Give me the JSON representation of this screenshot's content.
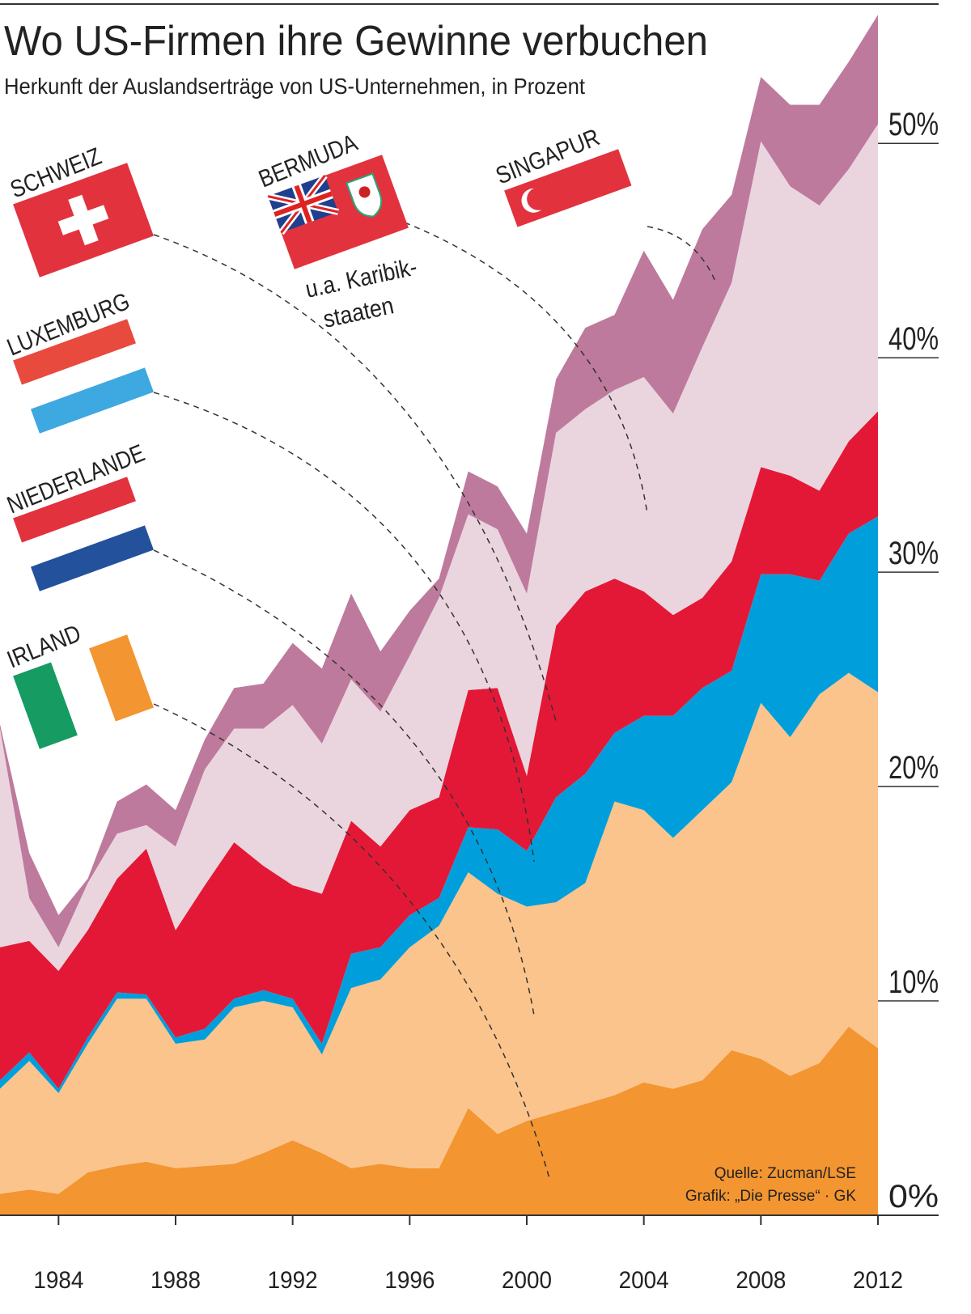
{
  "chart_data": {
    "type": "area",
    "stacked": true,
    "title": "Wo US-Firmen ihre Gewinne verbuchen",
    "subtitle": "Herkunft der Auslandserträge von US-Unternehmen, in Prozent",
    "x": [
      1982,
      1983,
      1984,
      1985,
      1986,
      1987,
      1988,
      1989,
      1990,
      1991,
      1992,
      1993,
      1994,
      1995,
      1996,
      1997,
      1998,
      1999,
      2000,
      2001,
      2002,
      2003,
      2004,
      2005,
      2006,
      2007,
      2008,
      2009,
      2010,
      2011,
      2012
    ],
    "xlim": [
      1982,
      2012
    ],
    "xticks": [
      1984,
      1988,
      1992,
      1996,
      2000,
      2004,
      2008,
      2012
    ],
    "ylim": [
      0,
      56.5
    ],
    "yticks": [
      {
        "value": 0,
        "label": "0%"
      },
      {
        "value": 10,
        "label": "10%"
      },
      {
        "value": 20,
        "label": "20%"
      },
      {
        "value": 30,
        "label": "30%"
      },
      {
        "value": 40,
        "label": "40%"
      },
      {
        "value": 50,
        "label": "50%"
      }
    ],
    "series": [
      {
        "name": "IRLAND",
        "color": "#f39530",
        "values": [
          1.0,
          1.2,
          1.0,
          2.0,
          2.3,
          2.5,
          2.2,
          2.3,
          2.4,
          2.9,
          3.5,
          2.9,
          2.2,
          2.4,
          2.2,
          2.2,
          5.0,
          3.8,
          4.4,
          4.8,
          5.2,
          5.6,
          6.2,
          5.9,
          6.3,
          7.7,
          7.3,
          6.5,
          7.1,
          8.8,
          7.8
        ]
      },
      {
        "name": "NIEDERLANDE",
        "color": "#fbc48c",
        "values": [
          4.9,
          6.0,
          4.7,
          6.0,
          7.8,
          7.6,
          5.8,
          5.9,
          7.3,
          7.1,
          6.2,
          4.6,
          8.4,
          8.6,
          10.3,
          11.3,
          11.0,
          11.2,
          10.0,
          9.8,
          10.3,
          13.7,
          12.7,
          11.7,
          12.6,
          12.5,
          16.6,
          15.8,
          17.2,
          16.5,
          16.6
        ]
      },
      {
        "name": "LUXEMBURG",
        "color": "#009fdc",
        "values": [
          0.4,
          0.4,
          0.2,
          0.3,
          0.3,
          0.2,
          0.3,
          0.5,
          0.4,
          0.5,
          0.4,
          0.5,
          1.6,
          1.5,
          1.5,
          1.3,
          2.1,
          3.0,
          2.6,
          4.9,
          5.1,
          3.2,
          4.4,
          5.7,
          5.7,
          5.2,
          6.0,
          7.6,
          5.3,
          6.5,
          8.2
        ]
      },
      {
        "name": "SCHWEIZ",
        "color": "#e31837",
        "values": [
          6.2,
          5.2,
          5.5,
          5.0,
          5.3,
          6.8,
          5.0,
          6.7,
          7.3,
          5.8,
          5.3,
          7.0,
          6.2,
          4.7,
          4.9,
          4.7,
          6.4,
          6.6,
          3.5,
          8.0,
          8.5,
          7.2,
          5.8,
          4.7,
          4.2,
          5.1,
          5.0,
          4.6,
          4.2,
          4.3,
          4.9
        ]
      },
      {
        "name": "BERMUDA",
        "color": "#ead5de",
        "values": [
          10.2,
          2.0,
          1.1,
          2.2,
          2.1,
          1.1,
          3.9,
          5.4,
          5.3,
          6.4,
          8.4,
          7.0,
          6.6,
          6.3,
          7.2,
          9.3,
          8.2,
          7.4,
          8.5,
          9.0,
          8.5,
          8.8,
          10.0,
          9.4,
          11.7,
          13.0,
          15.2,
          13.5,
          13.3,
          12.7,
          13.4
        ]
      },
      {
        "name": "SINGAPUR",
        "color": "#be7a9d",
        "values": [
          0.2,
          2.1,
          1.5,
          0.2,
          1.5,
          1.9,
          1.7,
          1.4,
          1.9,
          2.1,
          2.9,
          3.5,
          4.0,
          2.8,
          2.1,
          0.9,
          2.0,
          2.0,
          2.8,
          2.5,
          3.8,
          3.5,
          5.9,
          5.3,
          5.5,
          4.1,
          3.0,
          3.8,
          4.7,
          5.0,
          5.1
        ]
      }
    ],
    "notes": [
      "u.a. Karibik-",
      "staaten"
    ],
    "source": "Quelle: Zucman/LSE",
    "credit": "Grafik: „Die Presse“ · GK"
  }
}
